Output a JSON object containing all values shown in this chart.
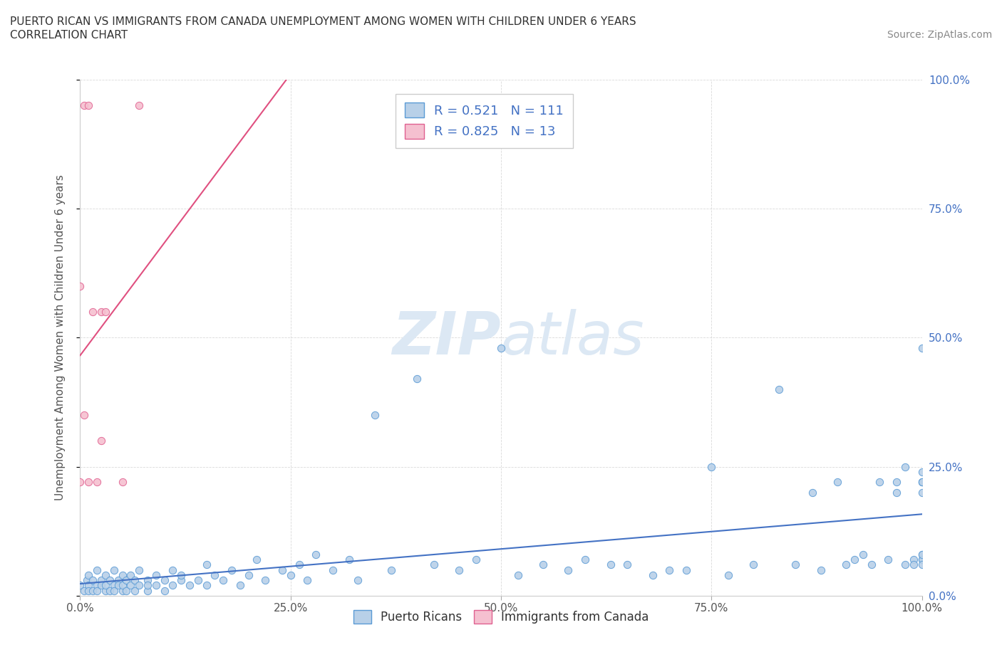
{
  "title_line1": "PUERTO RICAN VS IMMIGRANTS FROM CANADA UNEMPLOYMENT AMONG WOMEN WITH CHILDREN UNDER 6 YEARS",
  "title_line2": "CORRELATION CHART",
  "source_text": "Source: ZipAtlas.com",
  "ylabel": "Unemployment Among Women with Children Under 6 years",
  "blue_R": 0.521,
  "blue_N": 111,
  "pink_R": 0.825,
  "pink_N": 13,
  "blue_color": "#b8d0e8",
  "pink_color": "#f5c0d0",
  "blue_edge_color": "#5b9bd5",
  "pink_edge_color": "#e06090",
  "blue_line_color": "#4472c4",
  "pink_line_color": "#e05080",
  "right_tick_color": "#4472c4",
  "legend_text_color": "#4472c4",
  "watermark_color": "#dce8f4",
  "background_color": "#ffffff",
  "title_color": "#333333",
  "source_color": "#888888",
  "grid_color": "#d0d0d0",
  "xlabel_color": "#555555",
  "blue_x": [
    0.0,
    0.005,
    0.008,
    0.01,
    0.01,
    0.01,
    0.015,
    0.015,
    0.02,
    0.02,
    0.02,
    0.025,
    0.025,
    0.03,
    0.03,
    0.03,
    0.035,
    0.035,
    0.04,
    0.04,
    0.04,
    0.045,
    0.045,
    0.05,
    0.05,
    0.05,
    0.055,
    0.055,
    0.06,
    0.06,
    0.065,
    0.065,
    0.07,
    0.07,
    0.08,
    0.08,
    0.08,
    0.09,
    0.09,
    0.1,
    0.1,
    0.11,
    0.11,
    0.12,
    0.12,
    0.13,
    0.14,
    0.15,
    0.15,
    0.16,
    0.17,
    0.18,
    0.19,
    0.2,
    0.21,
    0.22,
    0.24,
    0.25,
    0.26,
    0.27,
    0.28,
    0.3,
    0.32,
    0.33,
    0.35,
    0.37,
    0.4,
    0.42,
    0.45,
    0.47,
    0.5,
    0.52,
    0.55,
    0.58,
    0.6,
    0.63,
    0.65,
    0.68,
    0.7,
    0.72,
    0.75,
    0.77,
    0.8,
    0.83,
    0.85,
    0.87,
    0.88,
    0.9,
    0.91,
    0.92,
    0.93,
    0.94,
    0.95,
    0.96,
    0.97,
    0.97,
    0.98,
    0.98,
    0.99,
    0.99,
    1.0,
    1.0,
    1.0,
    1.0,
    1.0,
    1.0,
    1.0,
    1.0,
    1.0,
    1.0,
    1.0
  ],
  "blue_y": [
    0.02,
    0.01,
    0.03,
    0.02,
    0.04,
    0.01,
    0.03,
    0.01,
    0.02,
    0.05,
    0.01,
    0.03,
    0.02,
    0.01,
    0.04,
    0.02,
    0.03,
    0.01,
    0.02,
    0.05,
    0.01,
    0.03,
    0.02,
    0.04,
    0.01,
    0.02,
    0.03,
    0.01,
    0.02,
    0.04,
    0.03,
    0.01,
    0.02,
    0.05,
    0.03,
    0.01,
    0.02,
    0.04,
    0.02,
    0.03,
    0.01,
    0.05,
    0.02,
    0.03,
    0.04,
    0.02,
    0.03,
    0.06,
    0.02,
    0.04,
    0.03,
    0.05,
    0.02,
    0.04,
    0.07,
    0.03,
    0.05,
    0.04,
    0.06,
    0.03,
    0.08,
    0.05,
    0.07,
    0.03,
    0.35,
    0.05,
    0.42,
    0.06,
    0.05,
    0.07,
    0.48,
    0.04,
    0.06,
    0.05,
    0.07,
    0.06,
    0.06,
    0.04,
    0.05,
    0.05,
    0.25,
    0.04,
    0.06,
    0.4,
    0.06,
    0.2,
    0.05,
    0.22,
    0.06,
    0.07,
    0.08,
    0.06,
    0.22,
    0.07,
    0.2,
    0.22,
    0.06,
    0.25,
    0.07,
    0.06,
    0.07,
    0.08,
    0.22,
    0.07,
    0.2,
    0.22,
    0.24,
    0.08,
    0.06,
    0.22,
    0.48
  ],
  "pink_x": [
    0.0,
    0.0,
    0.005,
    0.005,
    0.01,
    0.01,
    0.015,
    0.02,
    0.025,
    0.025,
    0.03,
    0.05,
    0.07
  ],
  "pink_y": [
    0.22,
    0.6,
    0.95,
    0.35,
    0.95,
    0.22,
    0.55,
    0.22,
    0.3,
    0.55,
    0.55,
    0.22,
    0.95
  ]
}
